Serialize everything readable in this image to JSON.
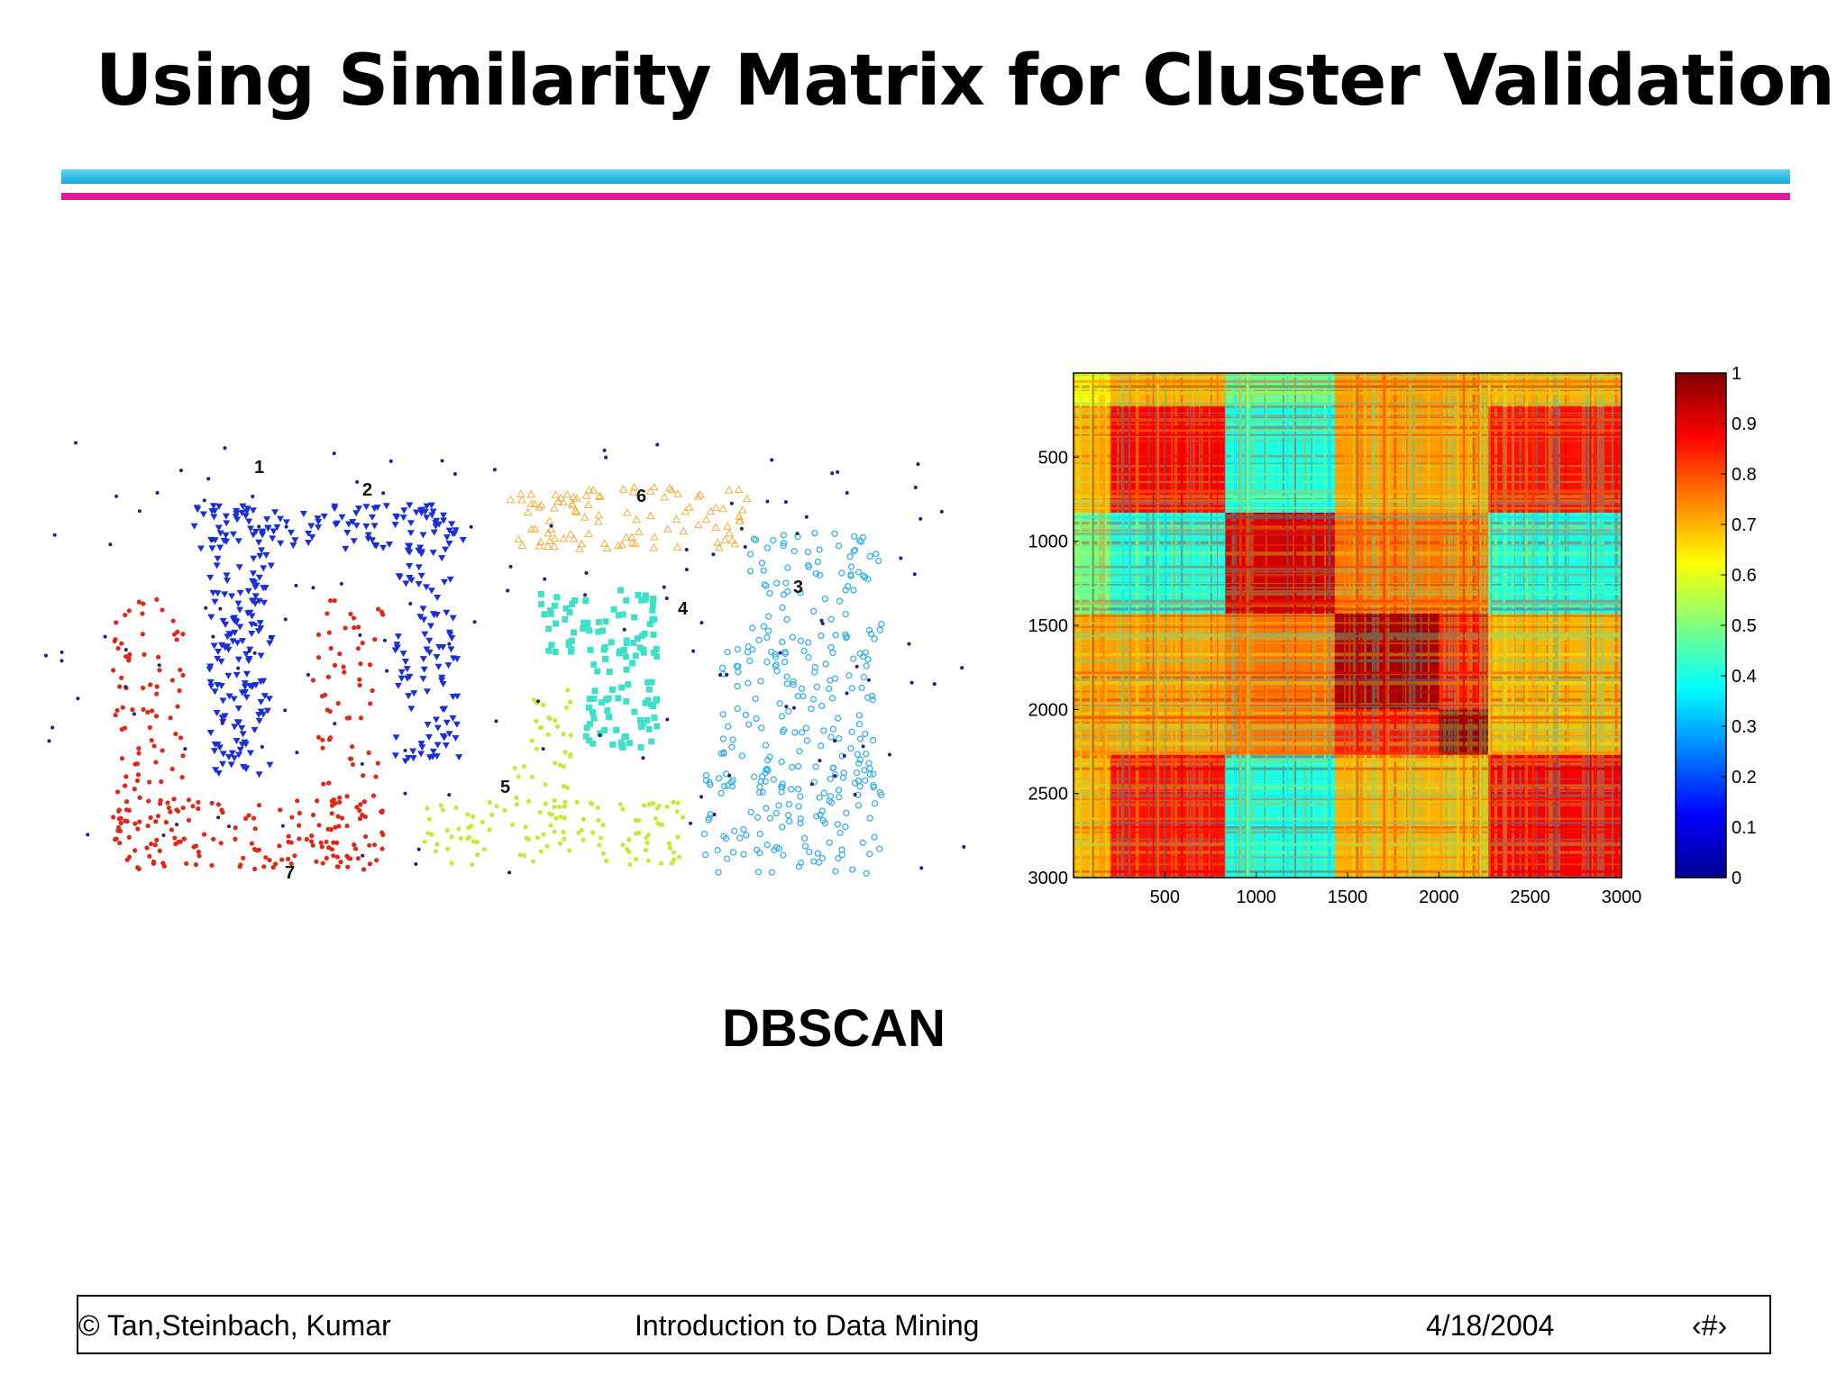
{
  "slide": {
    "title": "Using Similarity Matrix for Cluster Validation",
    "caption": "DBSCAN",
    "colors": {
      "rule_top": "#1ab0e0",
      "rule_bottom": "#e2189b"
    }
  },
  "footer": {
    "authors": "© Tan,Steinbach, Kumar",
    "course": "Introduction to Data Mining",
    "date": "4/18/2004",
    "page": "‹#›"
  },
  "chart_data": [
    {
      "type": "scatter",
      "title": "",
      "xlabel": "",
      "ylabel": "",
      "axes_visible": false,
      "clusters": [
        {
          "label": "1",
          "color": "#1a2fd8",
          "marker": "triangle-down"
        },
        {
          "label": "2",
          "color": "#1a2fd8",
          "marker": "triangle-down"
        },
        {
          "label": "3",
          "color": "#3ab0e8",
          "marker": "star"
        },
        {
          "label": "4",
          "color": "#3ee0c8",
          "marker": "square"
        },
        {
          "label": "5",
          "color": "#c8e838",
          "marker": "circle"
        },
        {
          "label": "6",
          "color": "#f0b040",
          "marker": "triangle-up"
        },
        {
          "label": "7",
          "color": "#e02818",
          "marker": "circle"
        }
      ],
      "noise": {
        "color": "#1a237e",
        "marker": "dot"
      }
    },
    {
      "type": "heatmap",
      "title": "",
      "x_ticks": [
        500,
        1000,
        1500,
        2000,
        2500,
        3000
      ],
      "y_ticks": [
        500,
        1000,
        1500,
        2000,
        2500,
        3000
      ],
      "xlim": [
        0,
        3000
      ],
      "ylim": [
        0,
        3000
      ],
      "y_reversed": true,
      "block_boundaries": [
        0,
        200,
        830,
        1430,
        2270,
        3000
      ],
      "block_similarity": [
        [
          0.62,
          0.7,
          0.48,
          0.72,
          0.7
        ],
        [
          0.7,
          0.88,
          0.4,
          0.72,
          0.86
        ],
        [
          0.48,
          0.4,
          0.92,
          0.76,
          0.4
        ],
        [
          0.72,
          0.72,
          0.76,
          0.88,
          0.7
        ],
        [
          0.7,
          0.86,
          0.4,
          0.7,
          0.88
        ]
      ],
      "sub_blocks": [
        {
          "rows": [
            1430,
            2000
          ],
          "cols": [
            1430,
            2000
          ],
          "value": 0.96
        },
        {
          "rows": [
            2000,
            2270
          ],
          "cols": [
            2000,
            2270
          ],
          "value": 0.98
        },
        {
          "rows": [
            1430,
            2000
          ],
          "cols": [
            2000,
            2270
          ],
          "value": 0.85
        },
        {
          "rows": [
            2000,
            2270
          ],
          "cols": [
            1430,
            2000
          ],
          "value": 0.85
        }
      ],
      "colorbar": {
        "ticks": [
          1,
          0.9,
          0.8,
          0.7,
          0.6,
          0.5,
          0.4,
          0.3,
          0.2,
          0.1,
          0
        ],
        "range": [
          0,
          1
        ],
        "colormap": "jet"
      },
      "grid": false
    }
  ]
}
